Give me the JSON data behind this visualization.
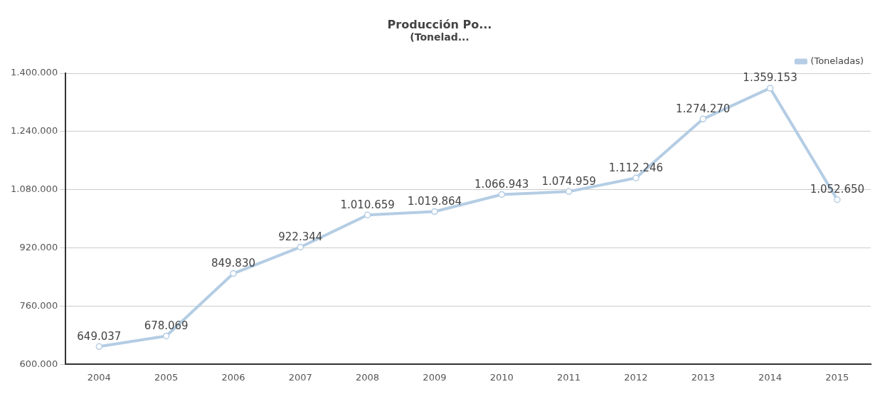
{
  "chart_data": {
    "type": "line",
    "title": "Producción Po...",
    "subtitle": "(Tonelad...",
    "categories": [
      "2004",
      "2005",
      "2006",
      "2007",
      "2008",
      "2009",
      "2010",
      "2011",
      "2012",
      "2013",
      "2014",
      "2015"
    ],
    "series": [
      {
        "name": "(Toneladas)",
        "color": "#b4cde4",
        "values": [
          649037,
          678069,
          849830,
          922344,
          1010659,
          1019864,
          1066943,
          1074959,
          1112246,
          1274270,
          1359153,
          1052650
        ],
        "value_labels": [
          "649.037",
          "678.069",
          "849.830",
          "922.344",
          "1.010.659",
          "1.019.864",
          "1.066.943",
          "1.074.959",
          "1.112.246",
          "1.274.270",
          "1.359.153",
          "1.052.650"
        ]
      }
    ],
    "ylim": [
      600000,
      1400000
    ],
    "yticks": [
      {
        "value": 600000,
        "label": "600.000"
      },
      {
        "value": 760000,
        "label": "760.000"
      },
      {
        "value": 920000,
        "label": "920.000"
      },
      {
        "value": 1080000,
        "label": "1.080.000"
      },
      {
        "value": 1240000,
        "label": "1.240.000"
      },
      {
        "value": 1400000,
        "label": "1.400.000"
      }
    ],
    "grid": "y",
    "legend": "top right",
    "marker": "circle",
    "line_style": "solid"
  }
}
